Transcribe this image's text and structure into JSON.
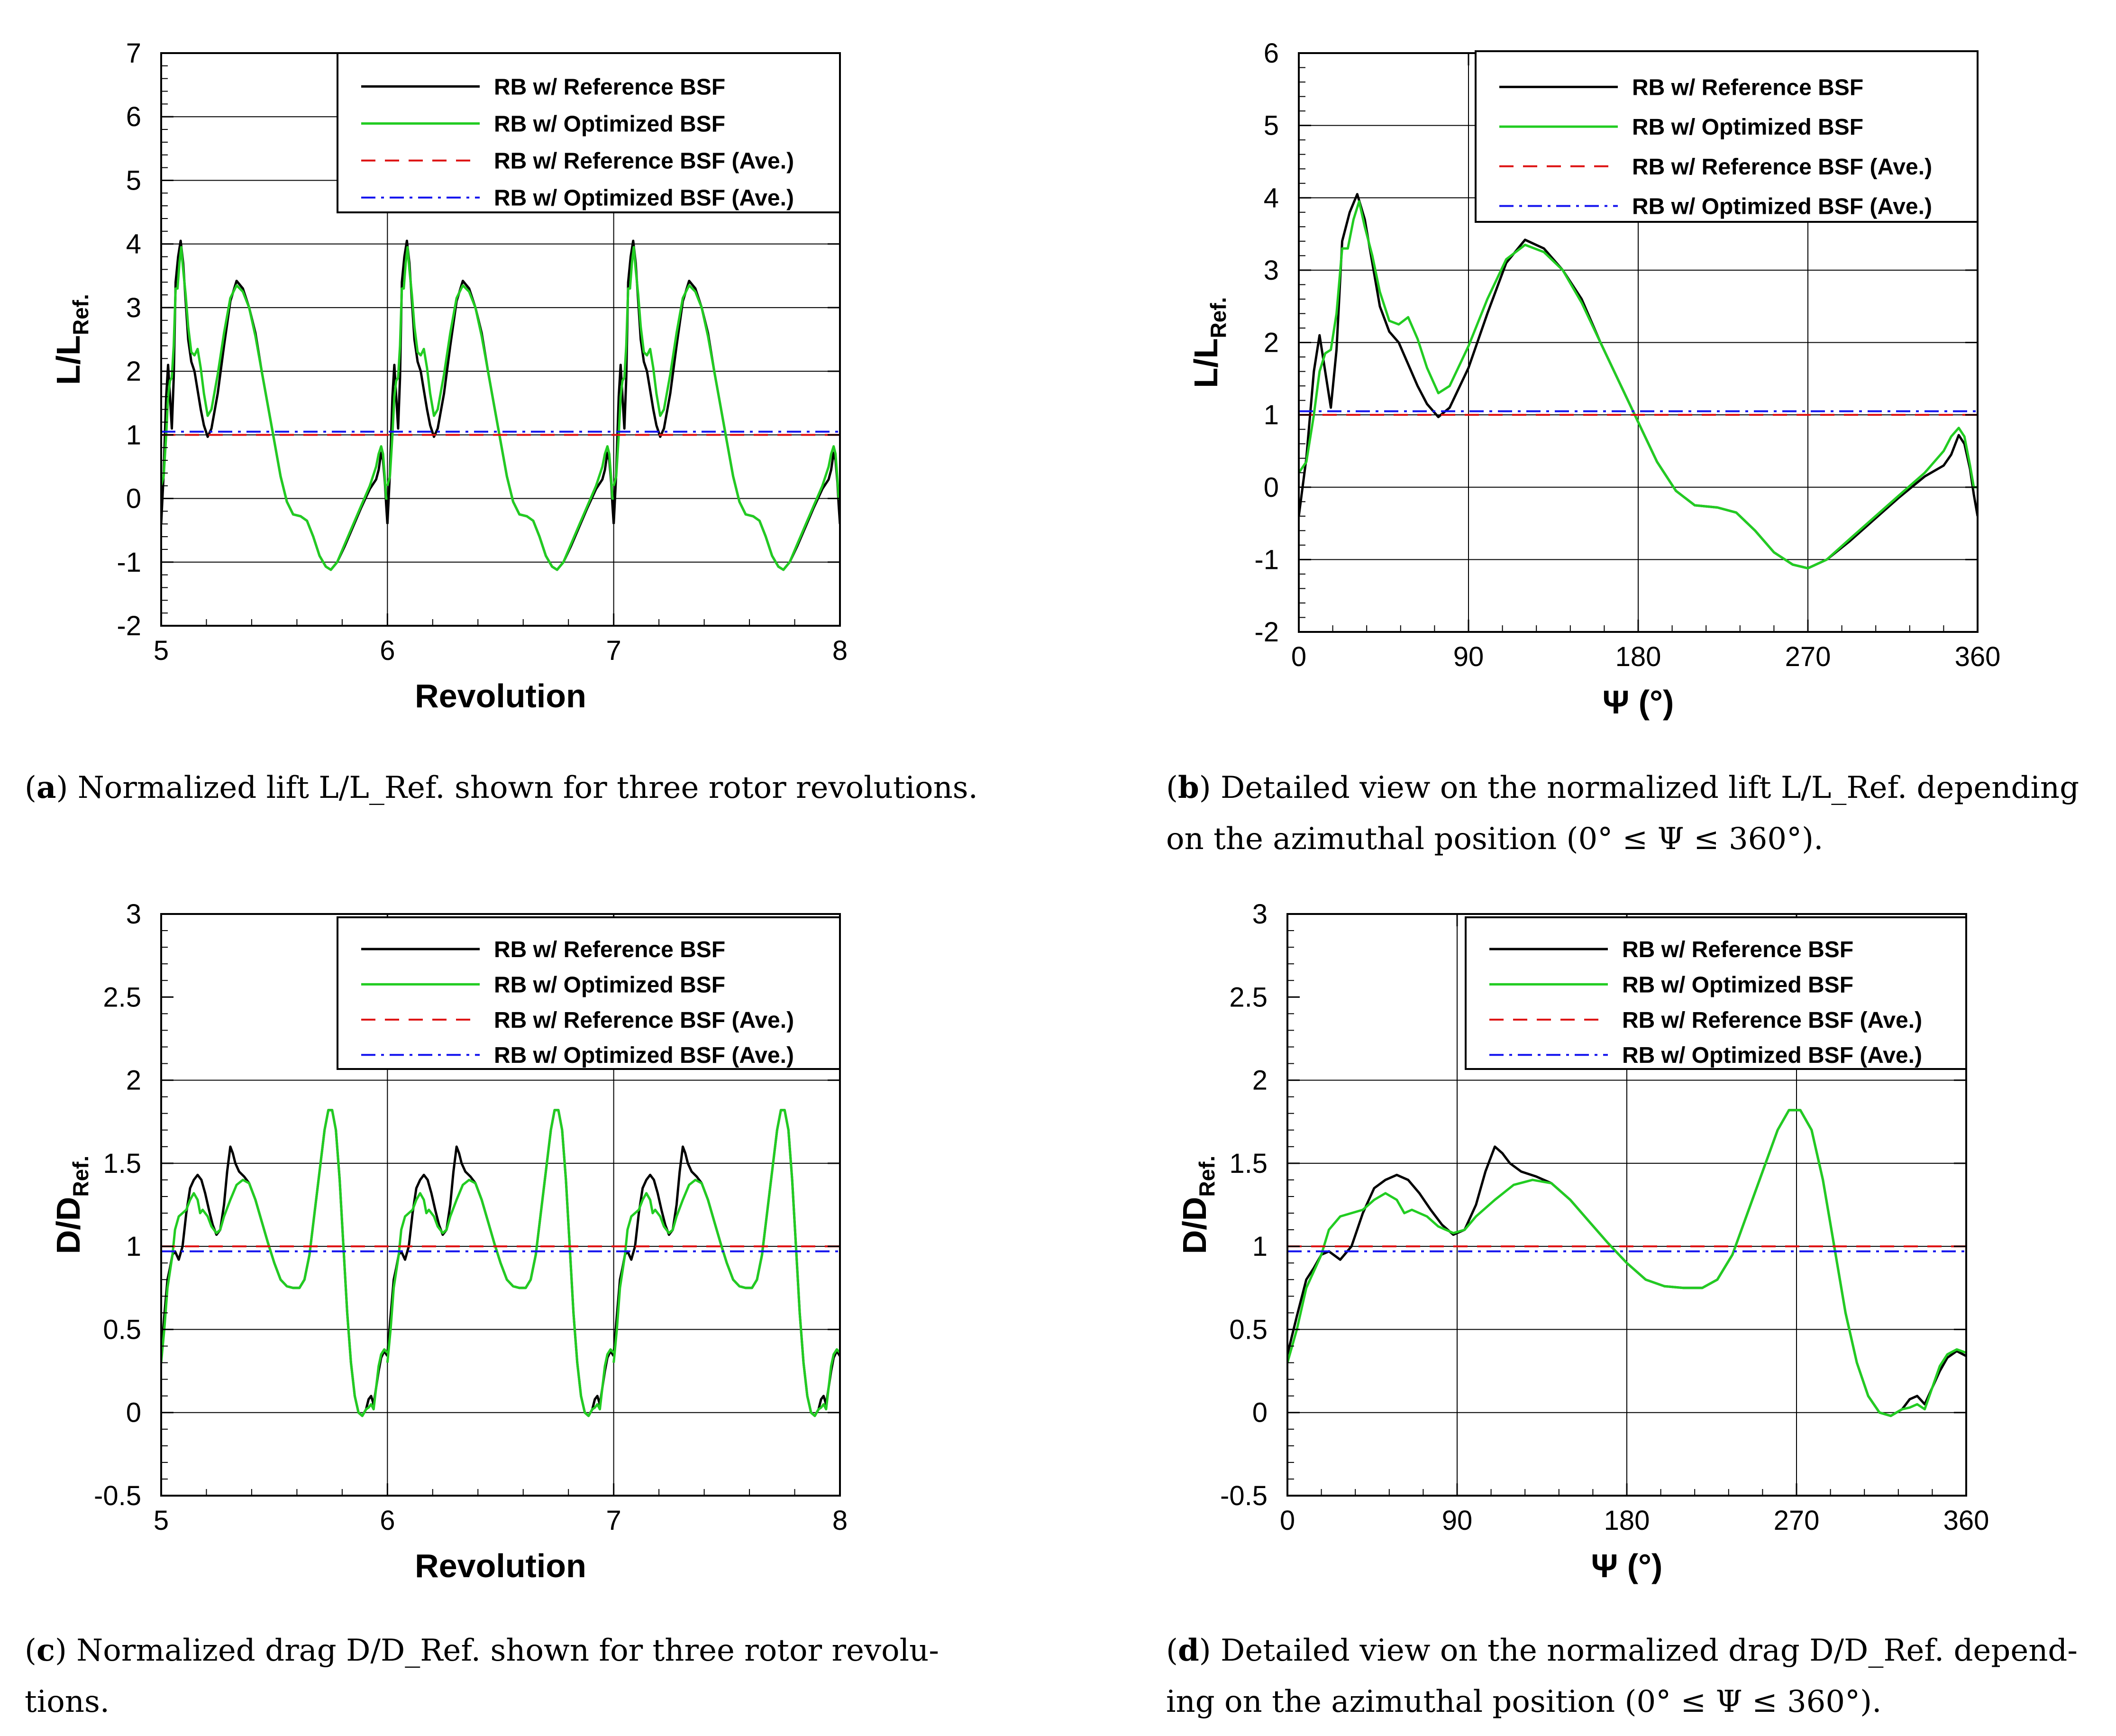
{
  "colors": {
    "reference": "#000000",
    "optimized": "#22cc22",
    "ref_ave": "#dd1111",
    "opt_ave": "#1111ee",
    "grid": "#000000"
  },
  "legend_items": [
    {
      "label": "RB w/ Reference BSF",
      "style": "solid",
      "color": "#000000"
    },
    {
      "label": "RB w/ Optimized BSF",
      "style": "solid",
      "color": "#22cc22"
    },
    {
      "label": "RB w/ Reference BSF (Ave.)",
      "style": "dashed",
      "color": "#dd1111"
    },
    {
      "label": "RB w/ Optimized BSF (Ave.)",
      "style": "dashdot",
      "color": "#1111ee"
    }
  ],
  "captions": [
    {
      "tag": "a",
      "line1": "Normalized lift L/L_Ref. shown for three rotor revolutions.",
      "line2": ""
    },
    {
      "tag": "b",
      "line1": "Detailed view on the normalized lift L/L_Ref. depending",
      "line2": "on the azimuthal position (0° ≤ Ψ ≤ 360°)."
    },
    {
      "tag": "c",
      "line1": "Normalized drag D/D_Ref. shown for three rotor revolu-",
      "line2": "tions."
    },
    {
      "tag": "d",
      "line1": "Detailed view on the normalized drag D/D_Ref. depend-",
      "line2": "ing on the azimuthal position (0° ≤ Ψ ≤ 360°)."
    }
  ],
  "chart_data": [
    {
      "id": "a",
      "type": "line",
      "xlabel": "Revolution",
      "ylabel": "L/L_Ref.",
      "xlim": [
        5,
        8
      ],
      "ylim": [
        -2,
        7
      ],
      "xticks": [
        5,
        6,
        7,
        8
      ],
      "yticks": [
        -2,
        -1,
        0,
        1,
        2,
        3,
        4,
        5,
        6,
        7
      ],
      "xtick_labels": [
        "5",
        "6",
        "7",
        "8"
      ],
      "ytick_labels": [
        "-2",
        "-1",
        "0",
        "1",
        "2",
        "3",
        "4",
        "5",
        "6",
        "7"
      ],
      "x_grid": [
        6,
        7
      ],
      "y_grid": [
        -1,
        0,
        1,
        2,
        3,
        4,
        5,
        6
      ],
      "legend": "top-right",
      "periodic_revolutions": [
        5,
        6,
        7
      ],
      "series": [
        {
          "name": "RB w/ Reference BSF",
          "ref": "lift_ref"
        },
        {
          "name": "RB w/ Optimized BSF",
          "ref": "lift_opt"
        },
        {
          "name": "RB w/ Reference BSF (Ave.)",
          "constant": 1.0
        },
        {
          "name": "RB w/ Optimized BSF (Ave.)",
          "constant": 1.05
        }
      ]
    },
    {
      "id": "b",
      "type": "line",
      "xlabel": "Ψ (°)",
      "ylabel": "L/L_Ref.",
      "xlim": [
        0,
        360
      ],
      "ylim": [
        -2,
        6
      ],
      "xticks": [
        0,
        90,
        180,
        270,
        360
      ],
      "yticks": [
        -2,
        -1,
        0,
        1,
        2,
        3,
        4,
        5,
        6
      ],
      "xtick_labels": [
        "0",
        "90",
        "180",
        "270",
        "360"
      ],
      "ytick_labels": [
        "-2",
        "-1",
        "0",
        "1",
        "2",
        "3",
        "4",
        "5",
        "6"
      ],
      "x_grid": [
        90,
        180,
        270
      ],
      "y_grid": [
        -1,
        0,
        1,
        2,
        3,
        4,
        5
      ],
      "legend": "top-right",
      "series": [
        {
          "name": "RB w/ Reference BSF",
          "ref": "lift_ref"
        },
        {
          "name": "RB w/ Optimized BSF",
          "ref": "lift_opt"
        },
        {
          "name": "RB w/ Reference BSF (Ave.)",
          "constant": 1.0
        },
        {
          "name": "RB w/ Optimized BSF (Ave.)",
          "constant": 1.05
        }
      ]
    },
    {
      "id": "c",
      "type": "line",
      "xlabel": "Revolution",
      "ylabel": "D/D_Ref.",
      "xlim": [
        5,
        8
      ],
      "ylim": [
        -0.5,
        3
      ],
      "xticks": [
        5,
        6,
        7,
        8
      ],
      "yticks": [
        -0.5,
        0,
        0.5,
        1,
        1.5,
        2,
        2.5,
        3
      ],
      "xtick_labels": [
        "5",
        "6",
        "7",
        "8"
      ],
      "ytick_labels": [
        "-0.5",
        "0",
        "0.5",
        "1",
        "1.5",
        "2",
        "2.5",
        "3"
      ],
      "x_grid": [
        6,
        7
      ],
      "y_grid": [
        0,
        0.5,
        1,
        1.5,
        2
      ],
      "legend": "top-right",
      "periodic_revolutions": [
        5,
        6,
        7
      ],
      "series": [
        {
          "name": "RB w/ Reference BSF",
          "ref": "drag_ref"
        },
        {
          "name": "RB w/ Optimized BSF",
          "ref": "drag_opt"
        },
        {
          "name": "RB w/ Reference BSF (Ave.)",
          "constant": 1.0
        },
        {
          "name": "RB w/ Optimized BSF (Ave.)",
          "constant": 0.97
        }
      ]
    },
    {
      "id": "d",
      "type": "line",
      "xlabel": "Ψ (°)",
      "ylabel": "D/D_Ref.",
      "xlim": [
        0,
        360
      ],
      "ylim": [
        -0.5,
        3
      ],
      "xticks": [
        0,
        90,
        180,
        270,
        360
      ],
      "yticks": [
        -0.5,
        0,
        0.5,
        1,
        1.5,
        2,
        2.5,
        3
      ],
      "xtick_labels": [
        "0",
        "90",
        "180",
        "270",
        "360"
      ],
      "ytick_labels": [
        "-0.5",
        "0",
        "0.5",
        "1",
        "1.5",
        "2",
        "2.5",
        "3"
      ],
      "x_grid": [
        90,
        180,
        270
      ],
      "y_grid": [
        0,
        0.5,
        1,
        1.5,
        2
      ],
      "legend": "top-right",
      "series": [
        {
          "name": "RB w/ Reference BSF",
          "ref": "drag_ref"
        },
        {
          "name": "RB w/ Optimized BSF",
          "ref": "drag_opt"
        },
        {
          "name": "RB w/ Reference BSF (Ave.)",
          "constant": 1.0
        },
        {
          "name": "RB w/ Optimized BSF (Ave.)",
          "constant": 0.97
        }
      ]
    }
  ],
  "curves": {
    "lift_ref": [
      [
        0,
        -0.4
      ],
      [
        4,
        0.4
      ],
      [
        8,
        1.6
      ],
      [
        11,
        2.1
      ],
      [
        14,
        1.6
      ],
      [
        17,
        1.1
      ],
      [
        20,
        1.9
      ],
      [
        23,
        3.4
      ],
      [
        27,
        3.8
      ],
      [
        31,
        4.05
      ],
      [
        35,
        3.7
      ],
      [
        39,
        3.1
      ],
      [
        43,
        2.5
      ],
      [
        48,
        2.15
      ],
      [
        53,
        2.0
      ],
      [
        58,
        1.7
      ],
      [
        63,
        1.4
      ],
      [
        68,
        1.15
      ],
      [
        74,
        0.97
      ],
      [
        80,
        1.1
      ],
      [
        90,
        1.65
      ],
      [
        100,
        2.4
      ],
      [
        110,
        3.1
      ],
      [
        120,
        3.42
      ],
      [
        130,
        3.3
      ],
      [
        140,
        3.0
      ],
      [
        150,
        2.6
      ],
      [
        160,
        2.0
      ],
      [
        170,
        1.45
      ],
      [
        180,
        0.9
      ],
      [
        190,
        0.35
      ],
      [
        200,
        -0.05
      ],
      [
        210,
        -0.25
      ],
      [
        222,
        -0.28
      ],
      [
        232,
        -0.35
      ],
      [
        242,
        -0.6
      ],
      [
        252,
        -0.9
      ],
      [
        262,
        -1.07
      ],
      [
        270,
        -1.12
      ],
      [
        280,
        -1.0
      ],
      [
        292,
        -0.75
      ],
      [
        305,
        -0.45
      ],
      [
        318,
        -0.15
      ],
      [
        332,
        0.15
      ],
      [
        342,
        0.3
      ],
      [
        346,
        0.45
      ],
      [
        350,
        0.72
      ],
      [
        353,
        0.6
      ],
      [
        356,
        0.25
      ],
      [
        358,
        -0.1
      ],
      [
        360,
        -0.4
      ]
    ],
    "lift_opt": [
      [
        0,
        0.2
      ],
      [
        4,
        0.35
      ],
      [
        8,
        1.0
      ],
      [
        11,
        1.6
      ],
      [
        14,
        1.85
      ],
      [
        17,
        1.9
      ],
      [
        20,
        2.4
      ],
      [
        23,
        3.3
      ],
      [
        26,
        3.3
      ],
      [
        29,
        3.7
      ],
      [
        32,
        3.95
      ],
      [
        35,
        3.6
      ],
      [
        39,
        3.2
      ],
      [
        43,
        2.7
      ],
      [
        48,
        2.3
      ],
      [
        53,
        2.25
      ],
      [
        58,
        2.35
      ],
      [
        63,
        2.05
      ],
      [
        68,
        1.65
      ],
      [
        74,
        1.3
      ],
      [
        80,
        1.4
      ],
      [
        90,
        1.95
      ],
      [
        100,
        2.6
      ],
      [
        110,
        3.15
      ],
      [
        120,
        3.35
      ],
      [
        130,
        3.25
      ],
      [
        140,
        3.0
      ],
      [
        150,
        2.55
      ],
      [
        160,
        2.0
      ],
      [
        170,
        1.45
      ],
      [
        180,
        0.9
      ],
      [
        190,
        0.35
      ],
      [
        200,
        -0.05
      ],
      [
        210,
        -0.25
      ],
      [
        222,
        -0.28
      ],
      [
        232,
        -0.35
      ],
      [
        242,
        -0.6
      ],
      [
        252,
        -0.9
      ],
      [
        262,
        -1.07
      ],
      [
        270,
        -1.12
      ],
      [
        280,
        -1.0
      ],
      [
        292,
        -0.72
      ],
      [
        305,
        -0.42
      ],
      [
        318,
        -0.12
      ],
      [
        332,
        0.2
      ],
      [
        342,
        0.5
      ],
      [
        346,
        0.7
      ],
      [
        350,
        0.82
      ],
      [
        353,
        0.7
      ],
      [
        356,
        0.3
      ],
      [
        358,
        0.0
      ],
      [
        360,
        0.0
      ]
    ],
    "drag_ref": [
      [
        0,
        0.35
      ],
      [
        5,
        0.58
      ],
      [
        10,
        0.8
      ],
      [
        14,
        0.87
      ],
      [
        18,
        0.95
      ],
      [
        22,
        0.97
      ],
      [
        28,
        0.92
      ],
      [
        34,
        1.0
      ],
      [
        40,
        1.2
      ],
      [
        46,
        1.35
      ],
      [
        52,
        1.4
      ],
      [
        58,
        1.43
      ],
      [
        64,
        1.4
      ],
      [
        70,
        1.32
      ],
      [
        76,
        1.22
      ],
      [
        82,
        1.13
      ],
      [
        88,
        1.07
      ],
      [
        94,
        1.1
      ],
      [
        100,
        1.25
      ],
      [
        105,
        1.45
      ],
      [
        110,
        1.6
      ],
      [
        114,
        1.56
      ],
      [
        118,
        1.5
      ],
      [
        124,
        1.45
      ],
      [
        132,
        1.42
      ],
      [
        140,
        1.38
      ],
      [
        150,
        1.28
      ],
      [
        160,
        1.15
      ],
      [
        170,
        1.02
      ],
      [
        180,
        0.9
      ],
      [
        190,
        0.8
      ],
      [
        200,
        0.76
      ],
      [
        210,
        0.75
      ],
      [
        220,
        0.75
      ],
      [
        228,
        0.8
      ],
      [
        236,
        0.95
      ],
      [
        244,
        1.2
      ],
      [
        252,
        1.45
      ],
      [
        260,
        1.7
      ],
      [
        266,
        1.82
      ],
      [
        272,
        1.82
      ],
      [
        278,
        1.7
      ],
      [
        284,
        1.4
      ],
      [
        290,
        1.0
      ],
      [
        296,
        0.6
      ],
      [
        302,
        0.3
      ],
      [
        308,
        0.1
      ],
      [
        314,
        0.0
      ],
      [
        320,
        -0.02
      ],
      [
        326,
        0.02
      ],
      [
        330,
        0.08
      ],
      [
        334,
        0.1
      ],
      [
        338,
        0.05
      ],
      [
        342,
        0.15
      ],
      [
        346,
        0.25
      ],
      [
        350,
        0.33
      ],
      [
        355,
        0.37
      ],
      [
        360,
        0.34
      ]
    ],
    "drag_opt": [
      [
        0,
        0.3
      ],
      [
        5,
        0.5
      ],
      [
        10,
        0.75
      ],
      [
        14,
        0.85
      ],
      [
        18,
        0.95
      ],
      [
        22,
        1.1
      ],
      [
        28,
        1.18
      ],
      [
        34,
        1.2
      ],
      [
        40,
        1.22
      ],
      [
        46,
        1.28
      ],
      [
        52,
        1.32
      ],
      [
        58,
        1.28
      ],
      [
        62,
        1.2
      ],
      [
        66,
        1.22
      ],
      [
        70,
        1.2
      ],
      [
        74,
        1.18
      ],
      [
        80,
        1.12
      ],
      [
        88,
        1.08
      ],
      [
        94,
        1.1
      ],
      [
        100,
        1.18
      ],
      [
        110,
        1.28
      ],
      [
        120,
        1.37
      ],
      [
        130,
        1.4
      ],
      [
        140,
        1.38
      ],
      [
        150,
        1.28
      ],
      [
        160,
        1.15
      ],
      [
        170,
        1.02
      ],
      [
        180,
        0.9
      ],
      [
        190,
        0.8
      ],
      [
        200,
        0.76
      ],
      [
        210,
        0.75
      ],
      [
        220,
        0.75
      ],
      [
        228,
        0.8
      ],
      [
        236,
        0.95
      ],
      [
        244,
        1.2
      ],
      [
        252,
        1.45
      ],
      [
        260,
        1.7
      ],
      [
        266,
        1.82
      ],
      [
        272,
        1.82
      ],
      [
        278,
        1.7
      ],
      [
        284,
        1.4
      ],
      [
        290,
        1.0
      ],
      [
        296,
        0.6
      ],
      [
        302,
        0.3
      ],
      [
        308,
        0.1
      ],
      [
        314,
        0.0
      ],
      [
        320,
        -0.02
      ],
      [
        326,
        0.02
      ],
      [
        330,
        0.03
      ],
      [
        334,
        0.05
      ],
      [
        338,
        0.02
      ],
      [
        342,
        0.15
      ],
      [
        346,
        0.28
      ],
      [
        350,
        0.35
      ],
      [
        355,
        0.38
      ],
      [
        360,
        0.36
      ]
    ]
  }
}
